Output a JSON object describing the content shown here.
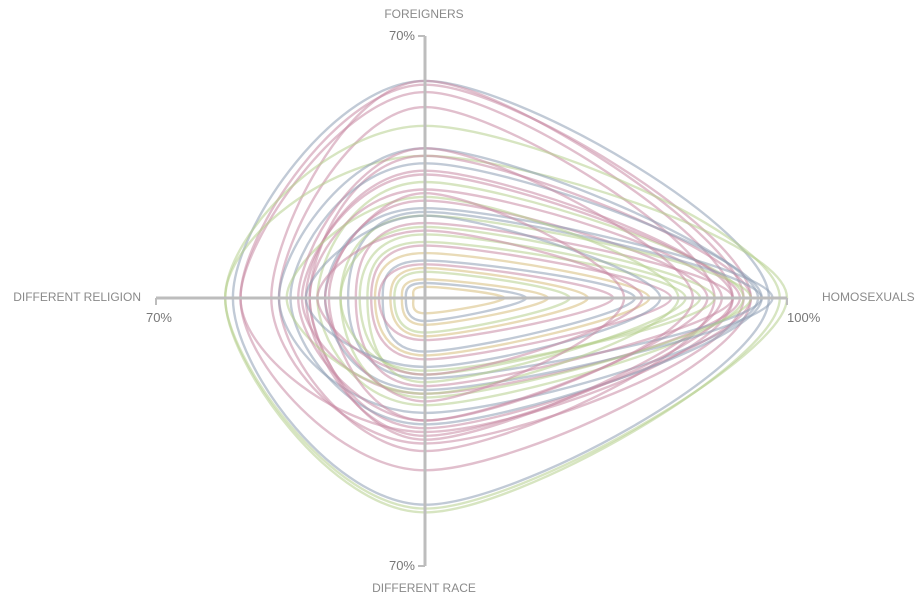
{
  "chart_data": {
    "type": "radar",
    "axes": [
      {
        "name": "FOREIGNERS",
        "max": 70,
        "max_label": "70%"
      },
      {
        "name": "HOMOSEXUALS",
        "max": 100,
        "max_label": "100%"
      },
      {
        "name": "DIFFERENT RACE",
        "max": 70,
        "max_label": "70%"
      },
      {
        "name": "DIFFERENT RELIGION",
        "max": 70,
        "max_label": "70%"
      }
    ],
    "colors": [
      "#8e9eb5",
      "#c98aa4",
      "#b7cf8e",
      "#d7bd7c"
    ],
    "series": [
      {
        "values": [
          58,
          95,
          54,
          50
        ],
        "color_index": 0
      },
      {
        "values": [
          58,
          88,
          38,
          40
        ],
        "color_index": 1
      },
      {
        "values": [
          57,
          90,
          45,
          48
        ],
        "color_index": 1
      },
      {
        "values": [
          55,
          85,
          35,
          48
        ],
        "color_index": 1
      },
      {
        "values": [
          51,
          80,
          40,
          38
        ],
        "color_index": 1
      },
      {
        "values": [
          46,
          98,
          56,
          52
        ],
        "color_index": 2
      },
      {
        "values": [
          38,
          100,
          55,
          52
        ],
        "color_index": 2
      },
      {
        "values": [
          40,
          92,
          30,
          38
        ],
        "color_index": 0
      },
      {
        "values": [
          38,
          90,
          34,
          30
        ],
        "color_index": 1
      },
      {
        "values": [
          36,
          93,
          33,
          35
        ],
        "color_index": 0
      },
      {
        "values": [
          31,
          88,
          28,
          28
        ],
        "color_index": 2
      },
      {
        "values": [
          34,
          85,
          36,
          31
        ],
        "color_index": 1
      },
      {
        "values": [
          29,
          82,
          37,
          30
        ],
        "color_index": 1
      },
      {
        "values": [
          26,
          78,
          32,
          25
        ],
        "color_index": 1
      },
      {
        "values": [
          33,
          87,
          25,
          32
        ],
        "color_index": 1
      },
      {
        "values": [
          24,
          96,
          24,
          26
        ],
        "color_index": 0
      },
      {
        "values": [
          23,
          93,
          21,
          20
        ],
        "color_index": 0
      },
      {
        "values": [
          22,
          90,
          26,
          22
        ],
        "color_index": 2
      },
      {
        "values": [
          20,
          85,
          23,
          18
        ],
        "color_index": 1
      },
      {
        "values": [
          19,
          80,
          19,
          22
        ],
        "color_index": 2
      },
      {
        "values": [
          17,
          76,
          20,
          17
        ],
        "color_index": 2
      },
      {
        "values": [
          15,
          72,
          22,
          15
        ],
        "color_index": 2
      },
      {
        "values": [
          14,
          68,
          16,
          14
        ],
        "color_index": 1
      },
      {
        "values": [
          12,
          62,
          15,
          13
        ],
        "color_index": 3
      },
      {
        "values": [
          10,
          58,
          14,
          11
        ],
        "color_index": 0
      },
      {
        "values": [
          9,
          52,
          11,
          12
        ],
        "color_index": 1
      },
      {
        "values": [
          8,
          45,
          10,
          9
        ],
        "color_index": 3
      },
      {
        "values": [
          7,
          40,
          9,
          8
        ],
        "color_index": 2
      },
      {
        "values": [
          5,
          34,
          7,
          6
        ],
        "color_index": 3
      },
      {
        "values": [
          4,
          28,
          6,
          5
        ],
        "color_index": 0
      },
      {
        "values": [
          3,
          22,
          4,
          3
        ],
        "color_index": 3
      },
      {
        "values": [
          22,
          65,
          18,
          31
        ],
        "color_index": 0
      },
      {
        "values": [
          18,
          60,
          20,
          28
        ],
        "color_index": 1
      },
      {
        "values": [
          27,
          70,
          25,
          36
        ],
        "color_index": 2
      },
      {
        "values": [
          40,
          74,
          32,
          33
        ],
        "color_index": 1
      },
      {
        "values": [
          28,
          55,
          27,
          26
        ],
        "color_index": 1
      }
    ]
  }
}
